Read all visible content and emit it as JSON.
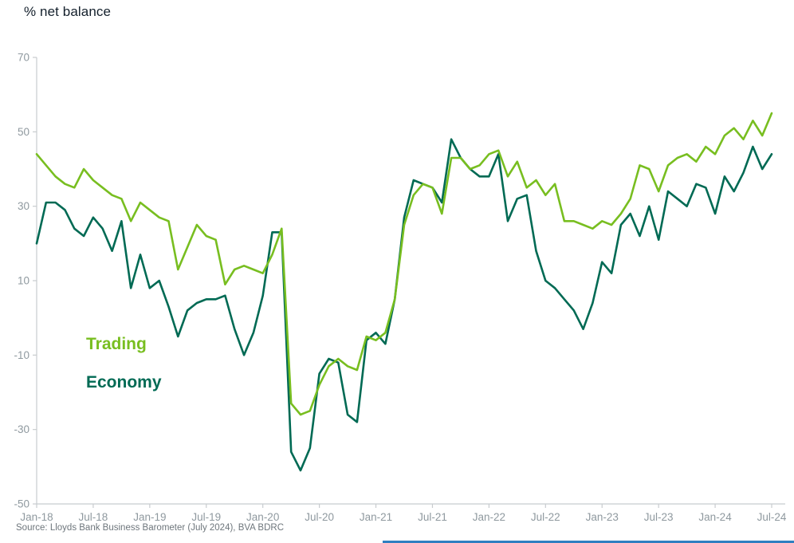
{
  "page": {
    "source_note": "Source: Lloyds Bank Business Barometer (July 2024), BVA BDRC"
  },
  "colors": {
    "trading_green": "#78be20",
    "economy_green": "#006a54",
    "axis_line": "#c8cccf",
    "tick_label": "#8f999f",
    "title_text": "#14202c",
    "source_text": "#6e767c",
    "footer_accent": "#2f7fc1"
  },
  "chart_data": {
    "type": "line",
    "title": "% net balance",
    "xlabel": "",
    "ylabel": "% net balance",
    "frequency": "monthly",
    "x_start": "Jan-18",
    "x_end": "Jul-24",
    "ylim": [
      -50,
      70
    ],
    "yticks": [
      70,
      50,
      30,
      10,
      -10,
      -30,
      -50
    ],
    "xticks": [
      {
        "index": 0,
        "label": "Jan-18"
      },
      {
        "index": 6,
        "label": "Jul-18"
      },
      {
        "index": 12,
        "label": "Jan-19"
      },
      {
        "index": 18,
        "label": "Jul-19"
      },
      {
        "index": 24,
        "label": "Jan-20"
      },
      {
        "index": 30,
        "label": "Jul-20"
      },
      {
        "index": 36,
        "label": "Jan-21"
      },
      {
        "index": 42,
        "label": "Jul-21"
      },
      {
        "index": 48,
        "label": "Jan-22"
      },
      {
        "index": 54,
        "label": "Jul-22"
      },
      {
        "index": 60,
        "label": "Jan-23"
      },
      {
        "index": 66,
        "label": "Jul-23"
      },
      {
        "index": 72,
        "label": "Jan-24"
      },
      {
        "index": 78,
        "label": "Jul-24"
      }
    ],
    "grid": false,
    "legend_position": "inside-left",
    "series": [
      {
        "name": "Trading",
        "color": "#78be20",
        "values": [
          44,
          41,
          38,
          36,
          35,
          40,
          37,
          35,
          33,
          32,
          26,
          31,
          29,
          27,
          26,
          13,
          19,
          25,
          22,
          21,
          9,
          13,
          14,
          13,
          12,
          17,
          24,
          -23,
          -26,
          -25,
          -18,
          -13,
          -11,
          -13,
          -14,
          -5,
          -6,
          -4,
          5,
          25,
          33,
          36,
          35,
          28,
          43,
          43,
          40,
          41,
          44,
          45,
          38,
          42,
          35,
          37,
          33,
          36,
          26,
          26,
          25,
          24,
          26,
          25,
          28,
          32,
          41,
          40,
          34,
          41,
          43,
          44,
          42,
          46,
          44,
          49,
          51,
          48,
          53,
          49,
          55
        ]
      },
      {
        "name": "Economy",
        "color": "#006a54",
        "values": [
          20,
          31,
          31,
          29,
          24,
          22,
          27,
          24,
          18,
          26,
          8,
          17,
          8,
          10,
          3,
          -5,
          2,
          4,
          5,
          5,
          6,
          -3,
          -10,
          -4,
          6,
          23,
          23,
          -36,
          -41,
          -35,
          -15,
          -11,
          -12,
          -26,
          -28,
          -6,
          -4,
          -7,
          5,
          27,
          37,
          36,
          35,
          31,
          48,
          43,
          40,
          38,
          38,
          44,
          26,
          32,
          33,
          18,
          10,
          8,
          5,
          2,
          -3,
          4,
          15,
          12,
          25,
          28,
          22,
          30,
          21,
          34,
          32,
          30,
          36,
          35,
          28,
          38,
          34,
          39,
          46,
          40,
          44
        ]
      }
    ]
  }
}
